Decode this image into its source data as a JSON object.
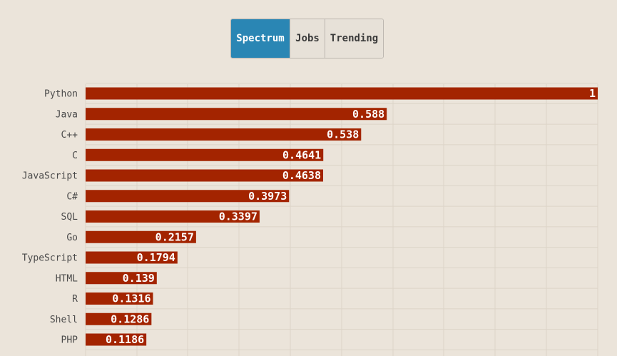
{
  "tabs": [
    {
      "label": "Spectrum",
      "active": true
    },
    {
      "label": "Jobs",
      "active": false
    },
    {
      "label": "Trending",
      "active": false
    }
  ],
  "colors": {
    "bar": "#a32400",
    "active_tab": "#2a86b4",
    "background": "#ebe4da",
    "grid": "#dcd4c8"
  },
  "chart_data": {
    "type": "bar",
    "orientation": "horizontal",
    "categories": [
      "Python",
      "Java",
      "C++",
      "C",
      "JavaScript",
      "C#",
      "SQL",
      "Go",
      "TypeScript",
      "HTML",
      "R",
      "Shell",
      "PHP"
    ],
    "values": [
      1,
      0.588,
      0.538,
      0.4641,
      0.4638,
      0.3973,
      0.3397,
      0.2157,
      0.1794,
      0.139,
      0.1316,
      0.1286,
      0.1186
    ],
    "xlim": [
      0,
      1
    ],
    "grid": true,
    "legend": "none"
  }
}
